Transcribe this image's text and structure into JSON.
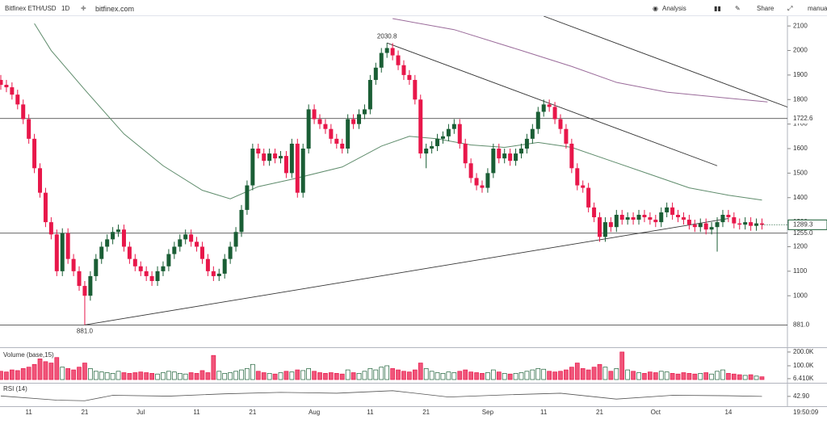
{
  "toolbar": {
    "symbol": "Bitfinex ETH/USD",
    "interval": "1D",
    "site": "bitfinex.com",
    "analysis": "Analysis",
    "share": "Share",
    "mode": "manua"
  },
  "chart_data": {
    "type": "candlestick",
    "categories": [
      null,
      null,
      null,
      null,
      null,
      "11",
      null,
      null,
      null,
      null,
      null,
      null,
      null,
      null,
      null,
      "21",
      null,
      null,
      null,
      null,
      null,
      null,
      null,
      null,
      null,
      "Jul",
      null,
      null,
      null,
      null,
      null,
      null,
      null,
      null,
      null,
      "11",
      null,
      null,
      null,
      null,
      null,
      null,
      null,
      null,
      null,
      "21",
      null,
      null,
      null,
      null,
      null,
      null,
      null,
      null,
      null,
      null,
      "Aug",
      null,
      null,
      null,
      null,
      null,
      null,
      null,
      null,
      null,
      "11",
      null,
      null,
      null,
      null,
      null,
      null,
      null,
      null,
      null,
      "21",
      null,
      null,
      null,
      null,
      null,
      null,
      null,
      null,
      null,
      null,
      "Sep",
      null,
      null,
      null,
      null,
      null,
      null,
      null,
      null,
      null,
      "11",
      null,
      null,
      null,
      null,
      null,
      null,
      null,
      null,
      null,
      "21",
      null,
      null,
      null,
      null,
      null,
      null,
      null,
      null,
      null,
      "Oct",
      null,
      null,
      null,
      null,
      null,
      null,
      null,
      null,
      null,
      null,
      null,
      null,
      "14",
      null,
      null,
      null,
      null,
      null,
      null
    ],
    "open": [
      1880,
      1860,
      1850,
      1820,
      1780,
      1720,
      1640,
      1520,
      1420,
      1300,
      1250,
      1100,
      1255,
      1150,
      1100,
      1040,
      1000,
      1080,
      1150,
      1200,
      1230,
      1260,
      1270,
      1200,
      1150,
      1120,
      1100,
      1080,
      1060,
      1100,
      1120,
      1170,
      1200,
      1230,
      1250,
      1220,
      1200,
      1150,
      1100,
      1080,
      1090,
      1150,
      1200,
      1260,
      1350,
      1450,
      1600,
      1580,
      1550,
      1580,
      1560,
      1570,
      1500,
      1620,
      1420,
      1600,
      1760,
      1720,
      1700,
      1680,
      1640,
      1620,
      1600,
      1720,
      1700,
      1740,
      1760,
      1880,
      1930,
      1990,
      2010,
      1980,
      1940,
      1900,
      1880,
      1800,
      1580,
      1600,
      1610,
      1640,
      1650,
      1680,
      1700,
      1620,
      1540,
      1480,
      1450,
      1440,
      1500,
      1600,
      1560,
      1580,
      1550,
      1580,
      1600,
      1640,
      1680,
      1750,
      1780,
      1770,
      1720,
      1680,
      1620,
      1520,
      1450,
      1440,
      1360,
      1320,
      1240,
      1300,
      1280,
      1330,
      1310,
      1320,
      1310,
      1330,
      1320,
      1310,
      1300,
      1340,
      1360,
      1330,
      1320,
      1310,
      1290,
      1280,
      1295,
      1270,
      1280,
      1300,
      1330,
      1320,
      1295,
      1290,
      1300,
      1285,
      1295
    ],
    "high": [
      1900,
      1880,
      1870,
      1840,
      1800,
      1740,
      1660,
      1540,
      1440,
      1320,
      1270,
      1275,
      1275,
      1170,
      1120,
      1060,
      1100,
      1170,
      1220,
      1250,
      1280,
      1290,
      1290,
      1220,
      1170,
      1140,
      1120,
      1100,
      1120,
      1140,
      1190,
      1220,
      1250,
      1270,
      1270,
      1240,
      1220,
      1170,
      1120,
      1110,
      1170,
      1220,
      1280,
      1370,
      1470,
      1620,
      1620,
      1600,
      1600,
      1600,
      1590,
      1590,
      1640,
      1640,
      1620,
      1780,
      1780,
      1740,
      1720,
      1700,
      1660,
      1640,
      1740,
      1740,
      1760,
      1780,
      1900,
      1950,
      2010,
      2030.8,
      2030,
      2000,
      1960,
      1920,
      1900,
      1820,
      1620,
      1630,
      1660,
      1670,
      1700,
      1720,
      1720,
      1640,
      1560,
      1500,
      1470,
      1520,
      1620,
      1620,
      1600,
      1600,
      1600,
      1620,
      1660,
      1700,
      1770,
      1800,
      1800,
      1790,
      1740,
      1700,
      1640,
      1540,
      1470,
      1460,
      1380,
      1340,
      1320,
      1320,
      1350,
      1350,
      1340,
      1340,
      1350,
      1350,
      1340,
      1330,
      1360,
      1380,
      1380,
      1350,
      1340,
      1330,
      1310,
      1315,
      1315,
      1300,
      1320,
      1350,
      1350,
      1340,
      1315,
      1320,
      1320,
      1315,
      1315
    ],
    "low": [
      1840,
      1830,
      1800,
      1760,
      1700,
      1620,
      1500,
      1400,
      1280,
      1230,
      1080,
      1080,
      1130,
      1080,
      1020,
      881,
      980,
      1060,
      1130,
      1180,
      1210,
      1240,
      1180,
      1130,
      1100,
      1080,
      1060,
      1040,
      1040,
      1080,
      1100,
      1150,
      1180,
      1210,
      1200,
      1180,
      1130,
      1080,
      1060,
      1060,
      1070,
      1130,
      1180,
      1240,
      1330,
      1430,
      1560,
      1530,
      1530,
      1540,
      1540,
      1480,
      1480,
      1400,
      1400,
      1580,
      1700,
      1680,
      1660,
      1620,
      1600,
      1580,
      1580,
      1680,
      1680,
      1720,
      1740,
      1860,
      1910,
      1970,
      1960,
      1920,
      1880,
      1860,
      1780,
      1560,
      1520,
      1580,
      1590,
      1620,
      1630,
      1660,
      1600,
      1520,
      1460,
      1430,
      1420,
      1420,
      1480,
      1540,
      1540,
      1530,
      1530,
      1560,
      1580,
      1620,
      1660,
      1730,
      1750,
      1700,
      1660,
      1600,
      1500,
      1430,
      1420,
      1340,
      1300,
      1220,
      1220,
      1260,
      1260,
      1290,
      1290,
      1290,
      1290,
      1300,
      1290,
      1280,
      1280,
      1320,
      1310,
      1300,
      1290,
      1270,
      1260,
      1260,
      1250,
      1250,
      1180,
      1280,
      1300,
      1275,
      1270,
      1270,
      1265,
      1265,
      1270
    ],
    "close": [
      1860,
      1850,
      1820,
      1780,
      1720,
      1640,
      1520,
      1420,
      1300,
      1250,
      1100,
      1255,
      1150,
      1100,
      1040,
      1000,
      1080,
      1150,
      1200,
      1230,
      1260,
      1270,
      1200,
      1150,
      1120,
      1100,
      1080,
      1060,
      1100,
      1120,
      1170,
      1200,
      1230,
      1250,
      1220,
      1200,
      1150,
      1100,
      1080,
      1090,
      1150,
      1200,
      1260,
      1350,
      1450,
      1600,
      1580,
      1550,
      1580,
      1560,
      1570,
      1500,
      1620,
      1420,
      1600,
      1760,
      1720,
      1700,
      1680,
      1640,
      1620,
      1600,
      1720,
      1700,
      1740,
      1760,
      1880,
      1930,
      1990,
      2010,
      1980,
      1940,
      1900,
      1880,
      1800,
      1580,
      1600,
      1610,
      1640,
      1650,
      1680,
      1700,
      1620,
      1540,
      1480,
      1450,
      1440,
      1500,
      1600,
      1560,
      1580,
      1550,
      1580,
      1600,
      1640,
      1680,
      1750,
      1780,
      1770,
      1720,
      1680,
      1620,
      1520,
      1450,
      1440,
      1360,
      1320,
      1240,
      1300,
      1280,
      1330,
      1310,
      1320,
      1310,
      1330,
      1320,
      1310,
      1300,
      1340,
      1360,
      1330,
      1320,
      1310,
      1290,
      1280,
      1295,
      1270,
      1280,
      1300,
      1330,
      1320,
      1295,
      1290,
      1300,
      1285,
      1295,
      1289.3
    ],
    "up_color": "#1a5e35",
    "down_color": "#e8174a",
    "ylim": [
      790,
      2140
    ],
    "yticks": [
      1000,
      1100,
      1200,
      1300,
      1400,
      1500,
      1600,
      1700,
      1800,
      1900,
      2000,
      2100
    ],
    "levels": [
      1722.6,
      {
        "value": 1255,
        "label": "1255.0"
      },
      {
        "value": 881,
        "label": "881.0"
      }
    ],
    "trendlines": [
      {
        "x": [
          15,
          130
        ],
        "values": [
          881,
          1315
        ]
      },
      {
        "x": [
          69,
          128
        ],
        "values": [
          2030.8,
          1530
        ]
      },
      {
        "x": [
          97,
          146
        ],
        "values": [
          2140,
          1723
        ]
      }
    ],
    "overlays": [
      {
        "color": "#5f8c6c",
        "x": [
          6,
          9,
          15,
          22,
          29,
          36,
          41,
          46,
          52,
          61,
          68,
          73,
          78,
          84,
          90,
          96,
          102,
          109,
          116,
          123,
          130,
          136
        ],
        "values": [
          2110,
          2000,
          1840,
          1660,
          1530,
          1430,
          1395,
          1445,
          1475,
          1525,
          1610,
          1650,
          1640,
          1615,
          1605,
          1625,
          1605,
          1550,
          1495,
          1440,
          1410,
          1390
        ]
      },
      {
        "color": "#9a6b9a",
        "x": [
          70,
          81,
          93,
          102,
          110,
          119,
          128,
          137
        ],
        "values": [
          2130,
          2085,
          2000,
          1935,
          1870,
          1830,
          1810,
          1790
        ]
      }
    ],
    "volume": {
      "title": "Volume (base,15)",
      "ylim": [
        0,
        223
      ],
      "yticks": [
        {
          "value": 200,
          "label": "200.0K"
        },
        {
          "value": 100,
          "label": "100.0K"
        },
        {
          "value": 6.41,
          "label": "6.410K"
        }
      ],
      "values": [
        60,
        55,
        70,
        65,
        80,
        90,
        110,
        150,
        130,
        120,
        160,
        90,
        80,
        70,
        90,
        120,
        80,
        60,
        55,
        50,
        45,
        60,
        50,
        45,
        50,
        55,
        50,
        45,
        40,
        50,
        60,
        55,
        45,
        40,
        50,
        45,
        65,
        50,
        175,
        60,
        45,
        50,
        60,
        70,
        80,
        110,
        60,
        50,
        45,
        40,
        50,
        60,
        55,
        70,
        65,
        80,
        60,
        50,
        45,
        50,
        45,
        40,
        70,
        50,
        45,
        60,
        80,
        70,
        90,
        100,
        80,
        70,
        60,
        55,
        70,
        120,
        80,
        60,
        50,
        45,
        55,
        50,
        60,
        70,
        55,
        50,
        45,
        50,
        70,
        55,
        45,
        40,
        45,
        50,
        60,
        70,
        80,
        75,
        60,
        55,
        60,
        70,
        90,
        120,
        80,
        70,
        90,
        110,
        90,
        60,
        80,
        200,
        70,
        60,
        50,
        45,
        55,
        50,
        60,
        55,
        45,
        40,
        50,
        45,
        40,
        45,
        50,
        40,
        60,
        70,
        45,
        40,
        35,
        30,
        35,
        25,
        20
      ]
    },
    "rsi": {
      "title": "RSI (14)",
      "ylim": [
        0,
        100
      ],
      "yticks": [
        {
          "value": 42.9,
          "label": "42.90"
        }
      ],
      "x": [
        0,
        10,
        15,
        20,
        30,
        40,
        50,
        60,
        70,
        80,
        90,
        100,
        110,
        120,
        130,
        136
      ],
      "values": [
        45,
        25,
        22,
        48,
        44,
        55,
        62,
        58,
        70,
        40,
        50,
        58,
        30,
        48,
        46,
        42.9
      ]
    },
    "time_label": "19:50:09"
  }
}
